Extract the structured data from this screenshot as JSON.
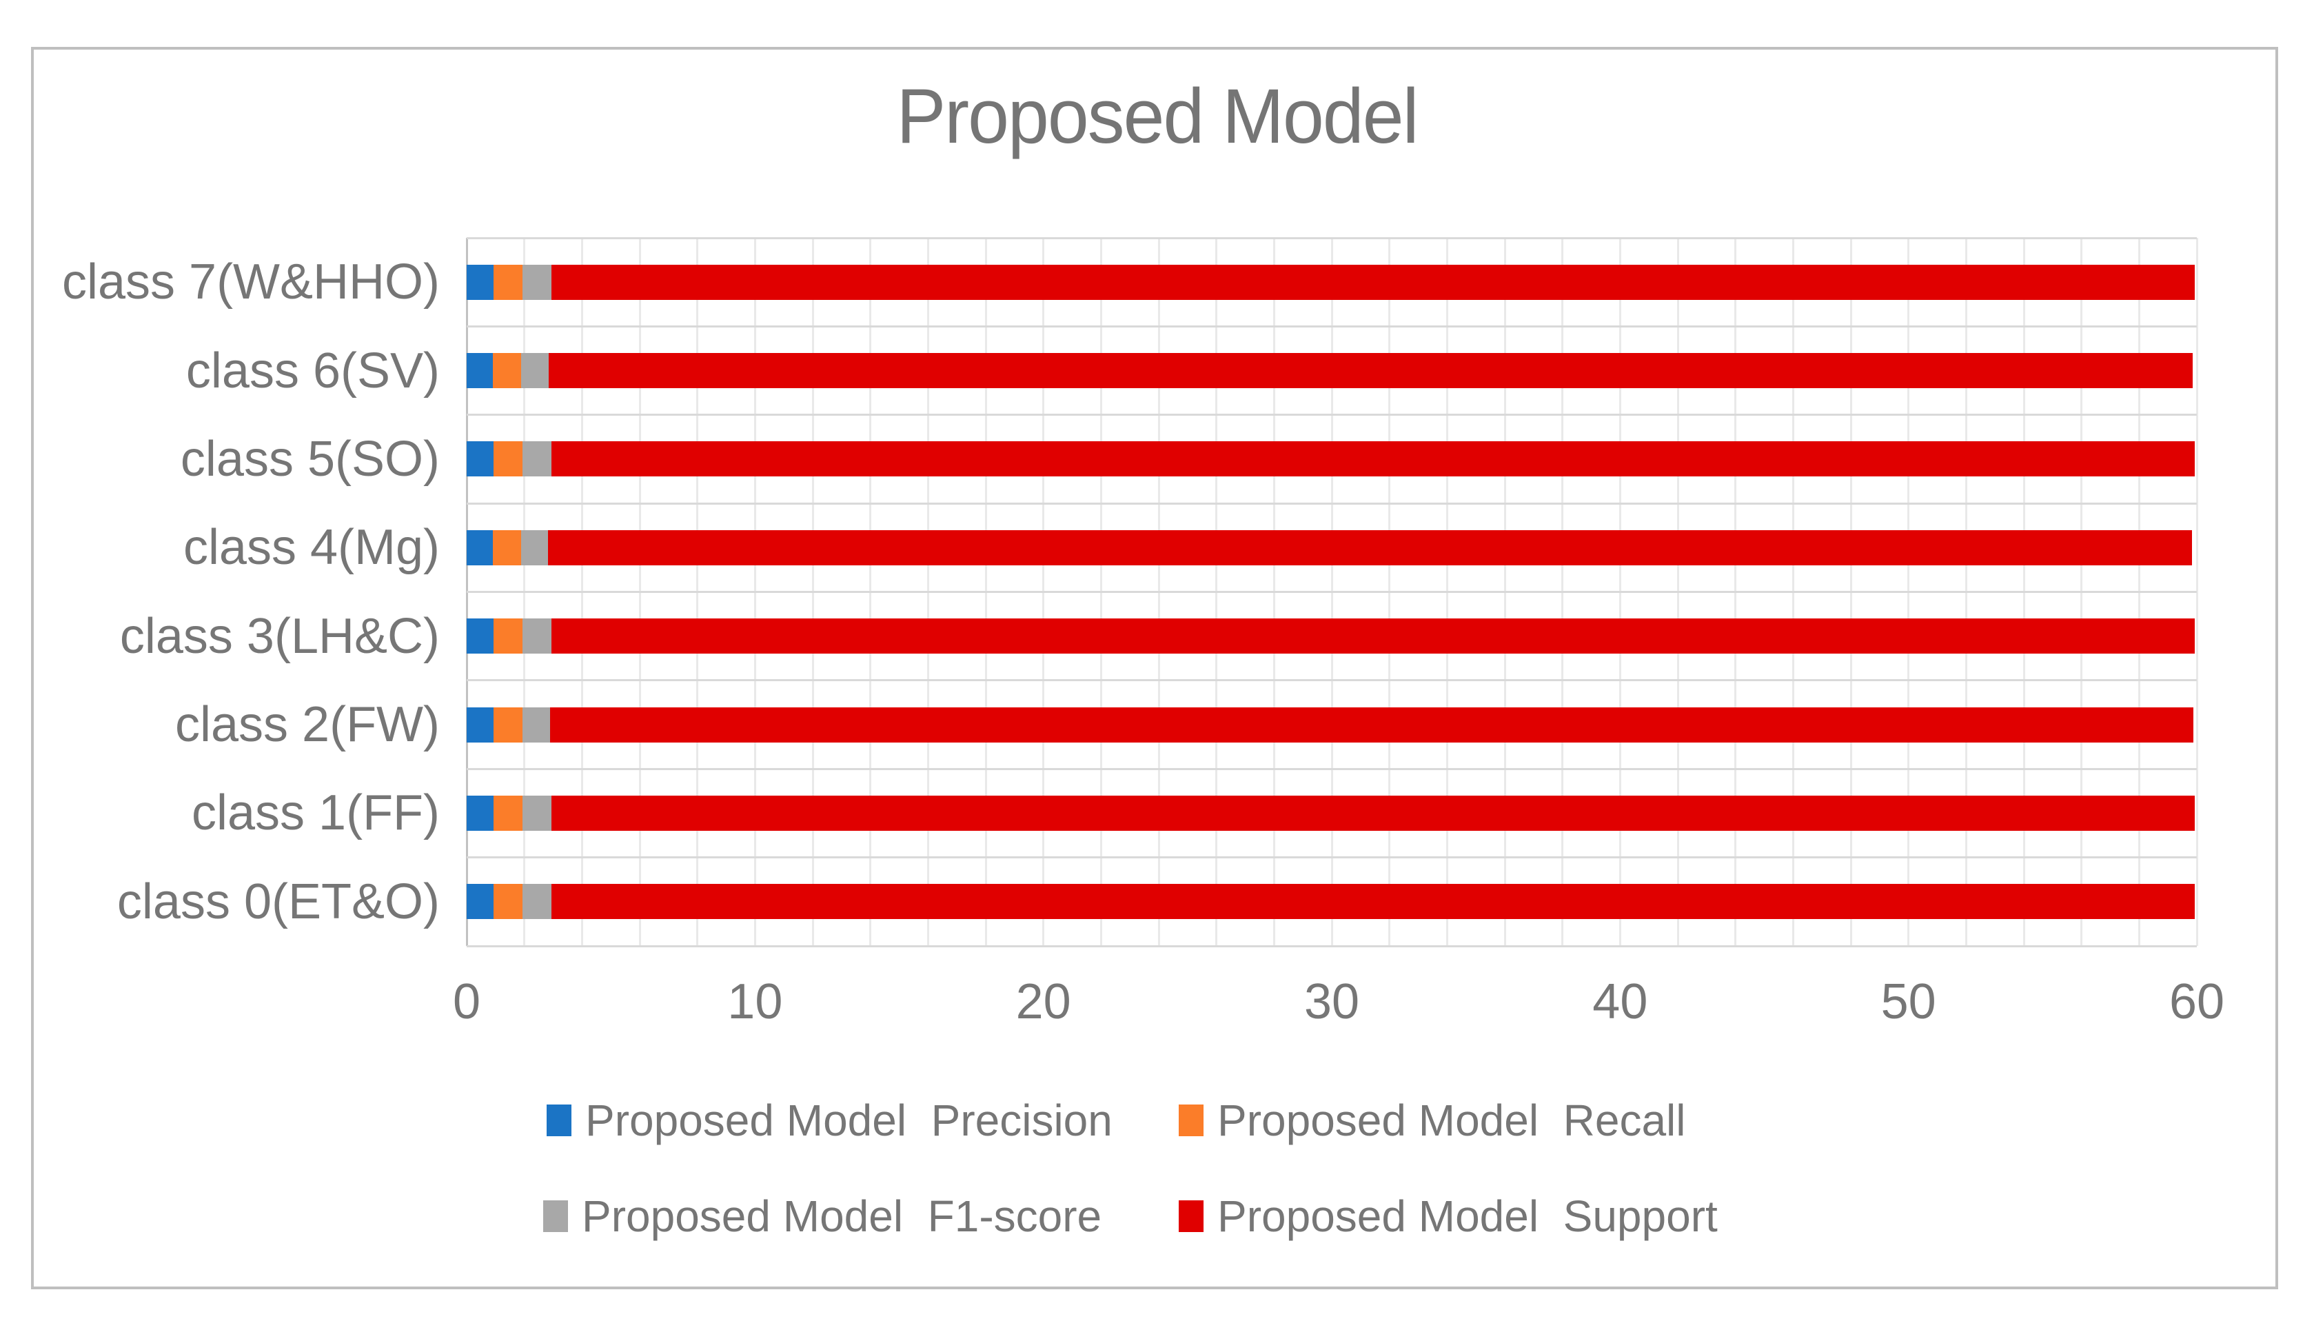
{
  "title": "Proposed Model",
  "colors": {
    "precision": "#1B74C5",
    "recall": "#FB7D29",
    "f1": "#A8A8A8",
    "support": "#E00000",
    "grid_vertical": "#E9E9E9",
    "grid_horizontal": "#D9D9D9",
    "axis_line": "#C2C2C2",
    "text": "#767676",
    "border": "#BFBFBF"
  },
  "chart_data": {
    "type": "bar",
    "orientation": "horizontal",
    "stacked": true,
    "title": "Proposed Model",
    "categories_top_to_bottom": [
      "class 7(W&HHO)",
      "class 6(SV)",
      "class 5(SO)",
      "class 4(Mg)",
      "class 3(LH&C)",
      "class 2(FW)",
      "class 1(FF)",
      "class 0(ET&O)"
    ],
    "series": [
      {
        "name": "Proposed Model  Precision",
        "color_key": "precision",
        "values": [
          0.93,
          0.91,
          0.93,
          0.91,
          0.93,
          0.93,
          0.93,
          0.93
        ]
      },
      {
        "name": "Proposed Model  Recall",
        "color_key": "recall",
        "values": [
          1.0,
          0.98,
          1.0,
          0.98,
          1.0,
          1.0,
          1.0,
          1.0
        ]
      },
      {
        "name": "Proposed Model  F1-score",
        "color_key": "f1",
        "values": [
          1.0,
          0.96,
          1.0,
          0.94,
          1.0,
          0.96,
          1.0,
          1.0
        ]
      },
      {
        "name": "Proposed Model  Support",
        "color_key": "support",
        "values": [
          57,
          57,
          57,
          57,
          57,
          57,
          57,
          57
        ]
      }
    ],
    "x_axis": {
      "min": 0,
      "max": 60,
      "tick_labels": [
        "0",
        "10",
        "20",
        "30",
        "40",
        "50",
        "60"
      ],
      "tick_step": 10,
      "minor_grid_step": 2
    },
    "grid": true,
    "legend_position": "bottom"
  },
  "legend": {
    "items": [
      {
        "label": "Proposed Model  Precision",
        "color_key": "precision"
      },
      {
        "label": "Proposed Model  Recall",
        "color_key": "recall"
      },
      {
        "label": "Proposed Model  F1-score",
        "color_key": "f1"
      },
      {
        "label": "Proposed Model  Support",
        "color_key": "support"
      }
    ]
  }
}
